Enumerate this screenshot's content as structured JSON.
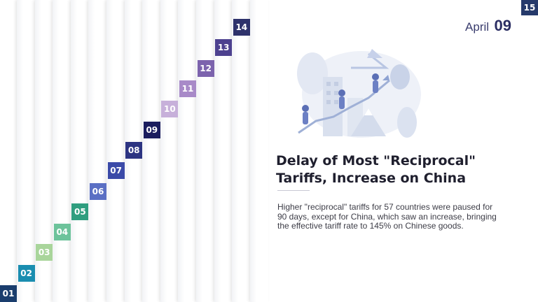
{
  "timeline": {
    "badges": [
      {
        "label": "01",
        "color": "#1a3d6d"
      },
      {
        "label": "02",
        "color": "#1a8db0"
      },
      {
        "label": "03",
        "color": "#a9d59b"
      },
      {
        "label": "04",
        "color": "#6dc39b"
      },
      {
        "label": "05",
        "color": "#2f9e7f"
      },
      {
        "label": "06",
        "color": "#5a6fc4"
      },
      {
        "label": "07",
        "color": "#3b4aa8"
      },
      {
        "label": "08",
        "color": "#2d3482"
      },
      {
        "label": "09",
        "color": "#1b1d5e"
      },
      {
        "label": "10",
        "color": "#c7b0da"
      },
      {
        "label": "11",
        "color": "#a88ac8"
      },
      {
        "label": "12",
        "color": "#7c63ad"
      },
      {
        "label": "13",
        "color": "#4d418f"
      },
      {
        "label": "14",
        "color": "#2e326b"
      },
      {
        "label": "15",
        "color": "#263a6b"
      }
    ]
  },
  "event": {
    "month": "April",
    "day": "09",
    "title": "Delay of Most \"Reciprocal\" Tariffs, Increase on China",
    "description": "Higher \"reciprocal\" tariffs for 57 countries were paused for 90 days, except for China, which saw an increase, bringing the effective tariff rate to 145% on Chinese goods.",
    "illustration_icon": "business-growth-illustration-icon"
  }
}
